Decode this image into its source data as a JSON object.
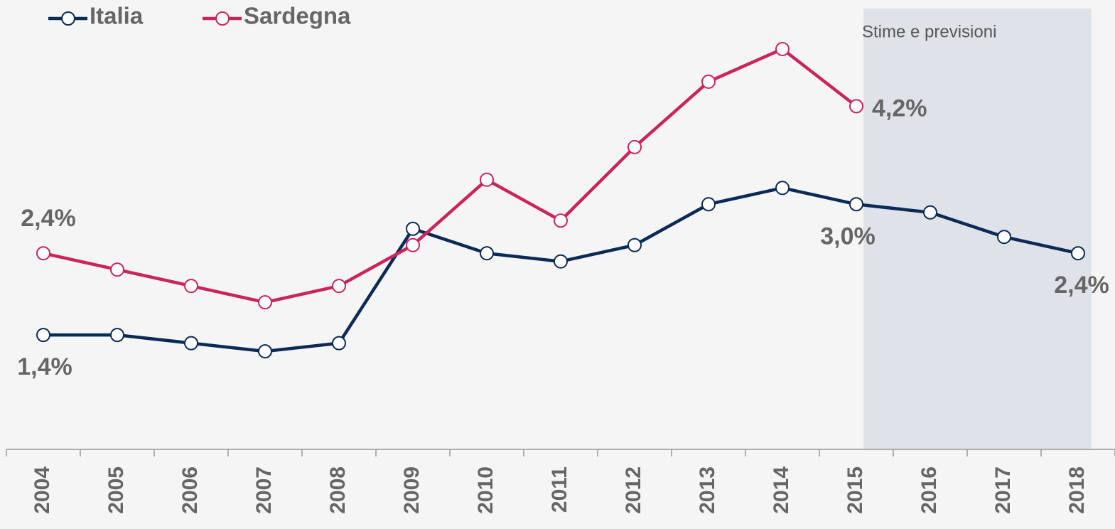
{
  "chart_data": {
    "type": "line",
    "categories": [
      "2004",
      "2005",
      "2006",
      "2007",
      "2008",
      "2009",
      "2010",
      "2011",
      "2012",
      "2013",
      "2014",
      "2015",
      "2016",
      "2017",
      "2018"
    ],
    "series": [
      {
        "name": "Italia",
        "color": "#0b2a55",
        "values": [
          1.4,
          1.4,
          1.3,
          1.2,
          1.3,
          2.7,
          2.4,
          2.3,
          2.5,
          3.0,
          3.2,
          3.0,
          2.9,
          2.6,
          2.4
        ],
        "value_labels": [
          "1,4%",
          null,
          null,
          null,
          null,
          null,
          null,
          null,
          null,
          null,
          null,
          "3,0%",
          null,
          null,
          "2,4%"
        ]
      },
      {
        "name": "Sardegna",
        "color": "#c9245e",
        "values": [
          2.4,
          2.2,
          2.0,
          1.8,
          2.0,
          2.5,
          3.3,
          2.8,
          3.7,
          4.5,
          4.9,
          4.2,
          null,
          null,
          null
        ],
        "value_labels": [
          "2,4%",
          null,
          null,
          null,
          null,
          null,
          null,
          null,
          null,
          null,
          null,
          "4,2%",
          null,
          null,
          null
        ]
      }
    ],
    "shaded_region": {
      "label": "Stime e previsioni",
      "from": "2015",
      "to": "2018"
    },
    "ylim": [
      0,
      5.5
    ],
    "legend": "top-left"
  }
}
